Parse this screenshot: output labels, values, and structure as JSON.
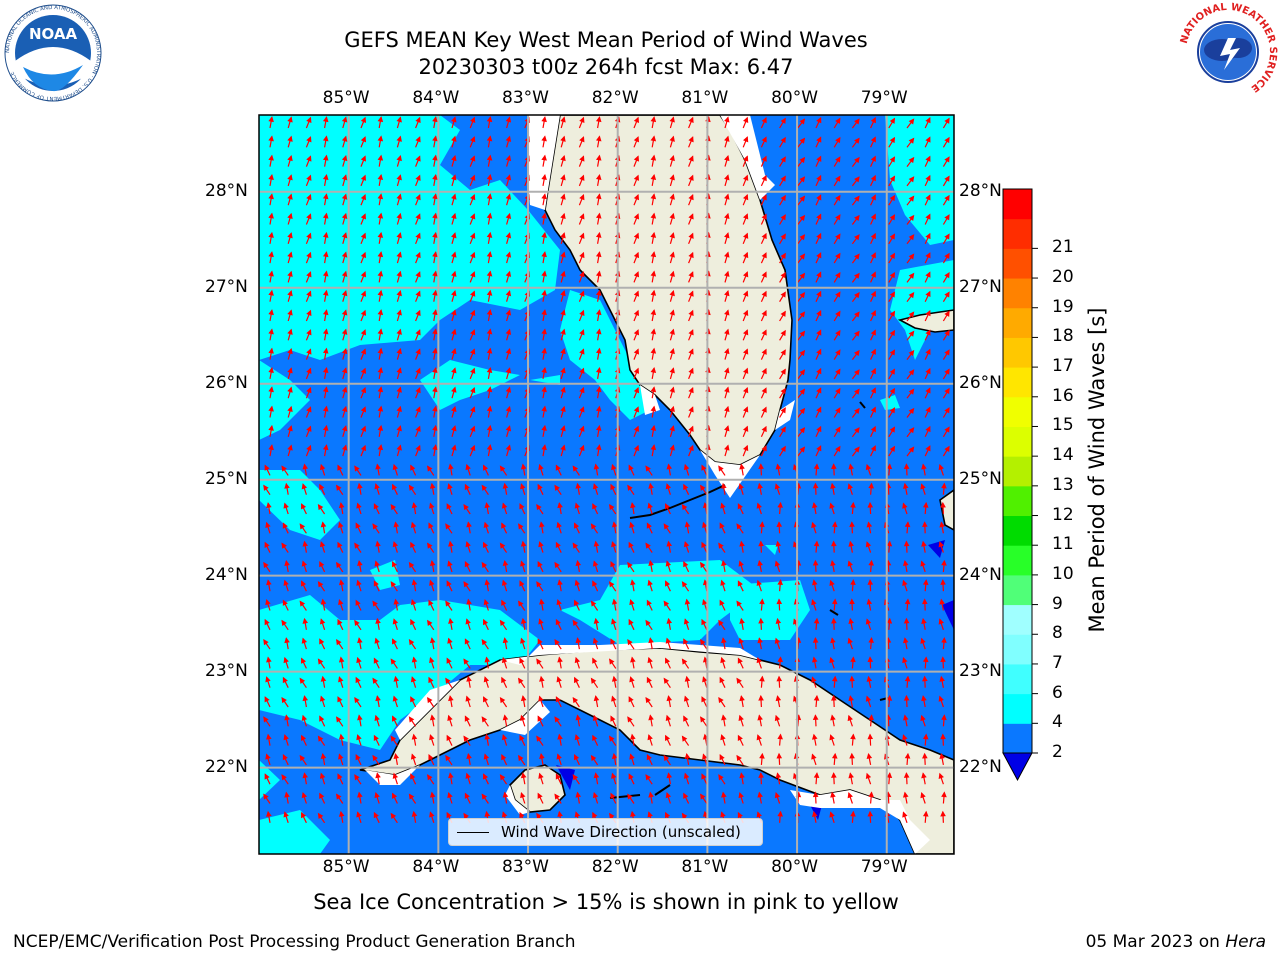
{
  "title": {
    "line1": "GEFS MEAN Key West Mean Period of Wind Waves",
    "line2": "20230303 t00z 264h fcst   Max: 6.47"
  },
  "logos": {
    "noaa_text": "NOAA",
    "noaa_ring": "NATIONAL OCEANIC AND ATMOSPHERIC ADMINISTRATION · U.S. DEPARTMENT OF COMMERCE",
    "nws_ring": "NATIONAL WEATHER SERVICE"
  },
  "map": {
    "lon_labels": [
      "85°W",
      "84°W",
      "83°W",
      "82°W",
      "81°W",
      "80°W",
      "79°W"
    ],
    "lat_labels": [
      "28°N",
      "27°N",
      "26°N",
      "25°N",
      "24°N",
      "23°N",
      "22°N"
    ],
    "lon_range": [
      -86,
      -78.25
    ],
    "lat_range": [
      21.1,
      28.8
    ],
    "legend_label": "Wind Wave Direction (unscaled)",
    "colors": {
      "ocean_2_4": "#0a78ff",
      "ocean_4_6": "#00ffff",
      "land": "#eeeedd",
      "arrow": "#ff0000",
      "grid": "#b0b0b0"
    }
  },
  "colorbar": {
    "title": "Mean Period of Wind Waves [s]",
    "ticks": [
      "2",
      "4",
      "6",
      "7",
      "8",
      "9",
      "10",
      "11",
      "12",
      "13",
      "14",
      "15",
      "16",
      "17",
      "18",
      "19",
      "20",
      "21"
    ],
    "colors": [
      "#0a78ff",
      "#00ffff",
      "#40ffff",
      "#80ffff",
      "#a0ffff",
      "#50ff78",
      "#28ff28",
      "#00dc00",
      "#50f000",
      "#b4f000",
      "#dcff00",
      "#f0ff00",
      "#ffe600",
      "#ffc800",
      "#ffaa00",
      "#ff8200",
      "#ff5000",
      "#ff2d00",
      "#ff0000"
    ],
    "under_color": "#0000e6"
  },
  "note": "Sea Ice Concentration > 15% is shown in pink to yellow",
  "footer": {
    "left": "NCEP/EMC/Verification Post Processing Product Generation Branch",
    "date": "05 Mar 2023 on ",
    "machine": "Hera"
  }
}
